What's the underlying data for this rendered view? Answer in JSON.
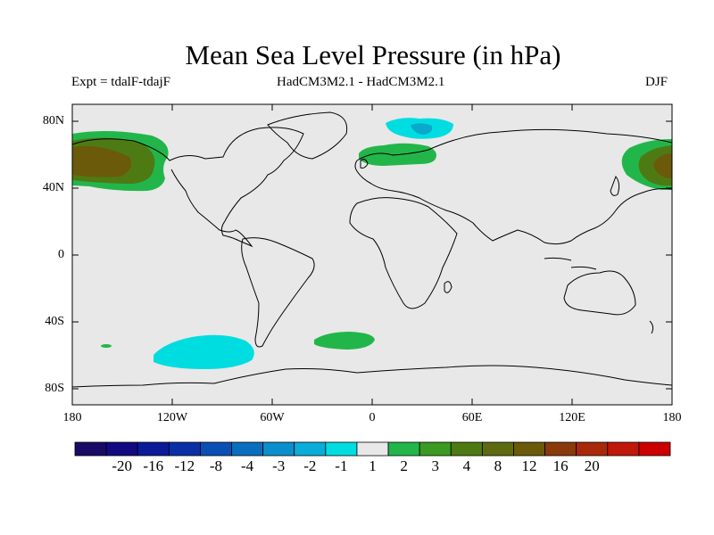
{
  "header": {
    "title": "Mean Sea Level Pressure (in hPa)",
    "experiment": "Expt = tdalF-tdajF",
    "models": "HadCM3M2.1 - HadCM3M2.1",
    "season": "DJF"
  },
  "map": {
    "background_color": "#e8e8e8",
    "lat_ticks": [
      "80N",
      "40N",
      "0",
      "40S",
      "80S"
    ],
    "lon_ticks": [
      "180",
      "120W",
      "60W",
      "0",
      "60E",
      "120E",
      "180"
    ],
    "anomaly_regions": [
      {
        "name": "north-pacific-west-high",
        "level": "3-8",
        "colors": [
          "#22b64a",
          "#4e7a14",
          "#6b5a0a"
        ]
      },
      {
        "name": "north-pacific-east-high",
        "level": "3-8",
        "colors": [
          "#22b64a",
          "#4e7a14",
          "#6b5a0a"
        ]
      },
      {
        "name": "barents-sea-low",
        "level": "-1 to -2",
        "colors": [
          "#00dde0",
          "#0aa8cc"
        ]
      },
      {
        "name": "north-europe-high",
        "level": "1-2",
        "colors": [
          "#22b64a"
        ]
      },
      {
        "name": "south-pacific-low",
        "level": "-1",
        "colors": [
          "#00dde0"
        ]
      },
      {
        "name": "south-atlantic-high",
        "level": "1",
        "colors": [
          "#22b64a"
        ]
      },
      {
        "name": "small-pacific-high",
        "level": "1",
        "colors": [
          "#22b64a"
        ]
      }
    ]
  },
  "colorbar": {
    "colors": [
      "#1a0a66",
      "#120a80",
      "#0a1a99",
      "#0a2ea6",
      "#0a4fb3",
      "#0a6ebf",
      "#0a8fcc",
      "#0aadd9",
      "#00dde0",
      "#e8e8e8",
      "#22b64a",
      "#3b9a22",
      "#4e7a14",
      "#5e6a10",
      "#6b5a0a",
      "#8a3a0a",
      "#a82a0a",
      "#c0180a",
      "#cc0000"
    ],
    "labels": [
      "-20",
      "-16",
      "-12",
      "-8",
      "-4",
      "-3",
      "-2",
      "-1",
      "1",
      "2",
      "3",
      "4",
      "8",
      "12",
      "16",
      "20"
    ]
  }
}
